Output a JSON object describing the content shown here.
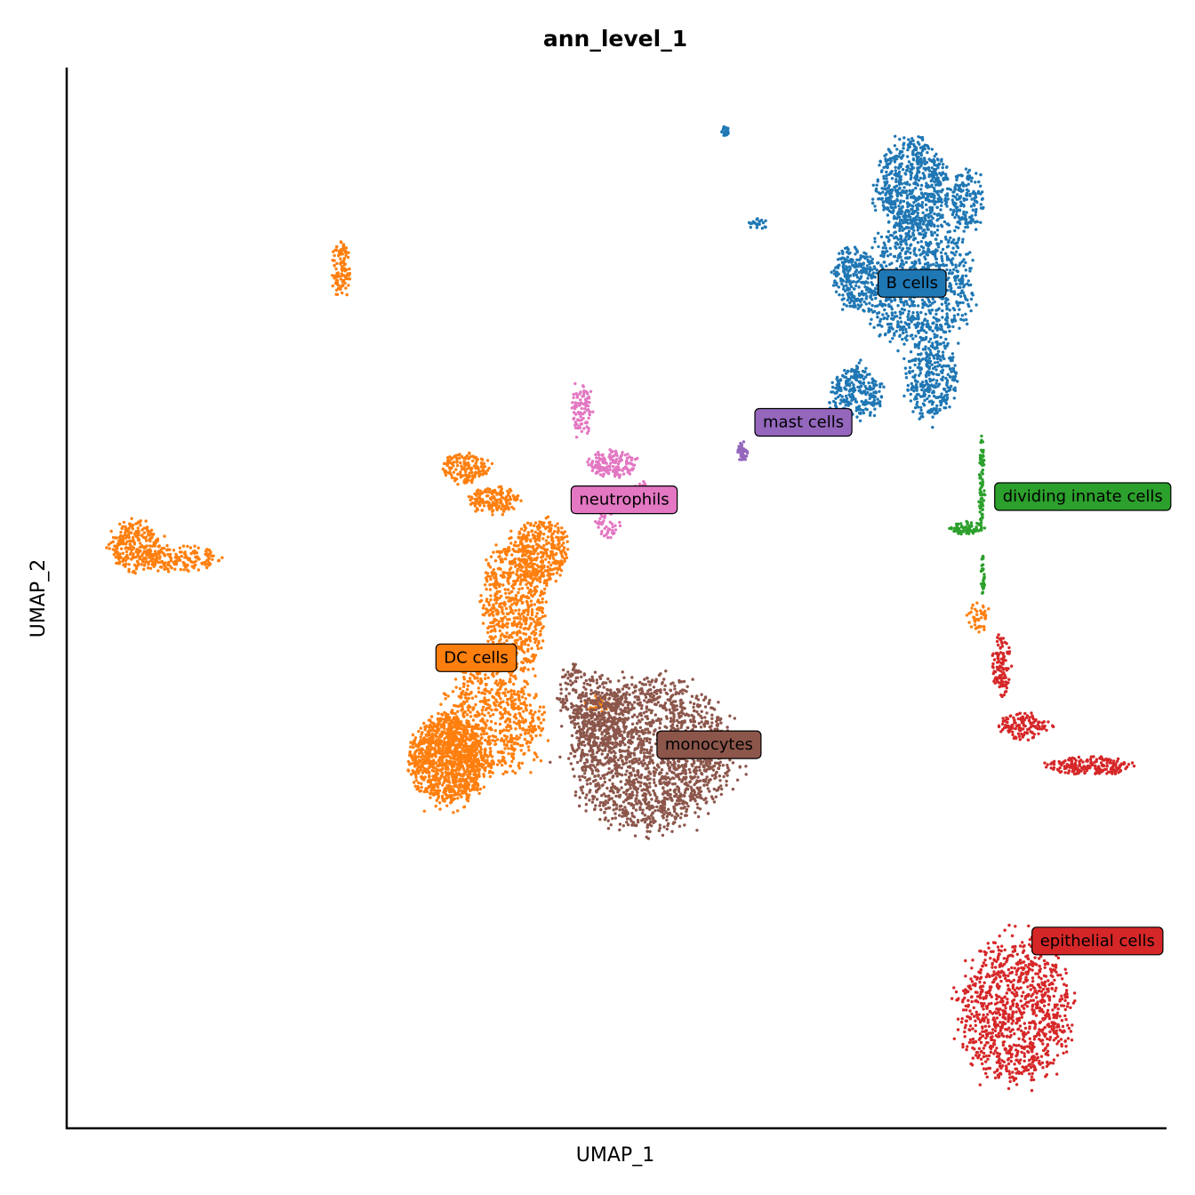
{
  "chart_data": {
    "type": "scatter",
    "title": "ann_level_1",
    "xlabel": "UMAP_1",
    "ylabel": "UMAP_2",
    "xticks": [],
    "yticks": [],
    "grid": false,
    "legend": "on-data",
    "xlim": [
      0,
      100
    ],
    "ylim": [
      0,
      100
    ],
    "series": [
      {
        "name": "B cells",
        "color": "#1f77b4",
        "label_at": [
          74.5,
          79.7
        ],
        "blobs": [
          {
            "cx": 77,
            "cy": 88.8,
            "rx": 3.2,
            "ry": 4.2,
            "n": 650
          },
          {
            "cx": 77.5,
            "cy": 79.7,
            "rx": 4.6,
            "ry": 6,
            "n": 900
          },
          {
            "cx": 71.6,
            "cy": 80.1,
            "rx": 1.8,
            "ry": 2.8,
            "n": 260
          },
          {
            "cx": 71.8,
            "cy": 69.4,
            "rx": 2.2,
            "ry": 2.3,
            "n": 260
          },
          {
            "cx": 78.6,
            "cy": 70.7,
            "rx": 2.3,
            "ry": 3.3,
            "n": 320
          },
          {
            "cx": 81.9,
            "cy": 87.4,
            "rx": 1.4,
            "ry": 2.8,
            "n": 160
          },
          {
            "cx": 59.9,
            "cy": 94,
            "rx": 0.35,
            "ry": 0.5,
            "n": 25
          },
          {
            "cx": 62.9,
            "cy": 85.3,
            "rx": 0.9,
            "ry": 0.45,
            "n": 22
          }
        ]
      },
      {
        "name": "DC cells",
        "color": "#ff7f0e",
        "label_at": [
          34.3,
          44.4
        ],
        "blobs": [
          {
            "cx": 34.6,
            "cy": 34.8,
            "rx": 3.2,
            "ry": 4,
            "n": 1100
          },
          {
            "cx": 38.5,
            "cy": 38,
            "rx": 4.5,
            "ry": 5,
            "n": 700
          },
          {
            "cx": 40.7,
            "cy": 49.2,
            "rx": 2.6,
            "ry": 6.5,
            "n": 650
          },
          {
            "cx": 43.2,
            "cy": 54.4,
            "rx": 2.2,
            "ry": 3,
            "n": 320
          },
          {
            "cx": 36.3,
            "cy": 62.3,
            "rx": 2,
            "ry": 1.4,
            "n": 160
          },
          {
            "cx": 38.9,
            "cy": 59.2,
            "rx": 2.2,
            "ry": 1.2,
            "n": 160
          },
          {
            "cx": 6.3,
            "cy": 54.8,
            "rx": 2.2,
            "ry": 2.2,
            "n": 280
          },
          {
            "cx": 10.5,
            "cy": 53.7,
            "rx": 3.3,
            "ry": 1.2,
            "n": 170
          },
          {
            "cx": 25,
            "cy": 81,
            "rx": 0.8,
            "ry": 2.4,
            "n": 110
          },
          {
            "cx": 48.4,
            "cy": 40,
            "rx": 1.1,
            "ry": 0.7,
            "n": 35
          },
          {
            "cx": 82.9,
            "cy": 48.2,
            "rx": 0.9,
            "ry": 1.3,
            "n": 45
          }
        ]
      },
      {
        "name": "dividing innate cells",
        "color": "#2ca02c",
        "label_at": [
          85.1,
          59.6
        ],
        "blobs": [
          {
            "cx": 81.8,
            "cy": 56.6,
            "rx": 1.5,
            "ry": 0.55,
            "n": 70
          },
          {
            "cx": 83.2,
            "cy": 61,
            "rx": 0.22,
            "ry": 3.8,
            "n": 80
          },
          {
            "cx": 83.3,
            "cy": 52.2,
            "rx": 0.16,
            "ry": 2,
            "n": 30
          }
        ]
      },
      {
        "name": "epithelial cells",
        "color": "#d62728",
        "label_at": [
          88.5,
          17.7
        ],
        "blobs": [
          {
            "cx": 86.1,
            "cy": 11.1,
            "rx": 4.8,
            "ry": 6.3,
            "n": 1000
          },
          {
            "cx": 93,
            "cy": 34.2,
            "rx": 3.5,
            "ry": 0.8,
            "n": 200
          },
          {
            "cx": 87.1,
            "cy": 37.9,
            "rx": 2.2,
            "ry": 1.2,
            "n": 130
          },
          {
            "cx": 85,
            "cy": 43.6,
            "rx": 0.8,
            "ry": 2.6,
            "n": 110
          }
        ]
      },
      {
        "name": "monocytes",
        "color": "#8c564b",
        "label_at": [
          54.4,
          36.2
        ],
        "blobs": [
          {
            "cx": 53.2,
            "cy": 35.3,
            "rx": 7,
            "ry": 6.6,
            "n": 1800
          },
          {
            "cx": 48.6,
            "cy": 38.7,
            "rx": 2.2,
            "ry": 3.5,
            "n": 280
          },
          {
            "cx": 46.4,
            "cy": 40.6,
            "rx": 1.5,
            "ry": 3,
            "n": 110
          }
        ]
      },
      {
        "name": "mast cells",
        "color": "#9467bd",
        "label_at": [
          63.3,
          66.6
        ],
        "blobs": [
          {
            "cx": 61.5,
            "cy": 63.8,
            "rx": 0.45,
            "ry": 0.9,
            "n": 45
          }
        ]
      },
      {
        "name": "neutrophils",
        "color": "#e377c2",
        "label_at": [
          46.6,
          59.3
        ],
        "blobs": [
          {
            "cx": 49.7,
            "cy": 62.7,
            "rx": 2.2,
            "ry": 1.2,
            "n": 160
          },
          {
            "cx": 46.8,
            "cy": 67.7,
            "rx": 0.9,
            "ry": 2.2,
            "n": 90
          },
          {
            "cx": 52.3,
            "cy": 59.8,
            "rx": 0.9,
            "ry": 1,
            "n": 60
          },
          {
            "cx": 49.2,
            "cy": 57,
            "rx": 1,
            "ry": 1.4,
            "n": 45
          }
        ]
      }
    ]
  }
}
